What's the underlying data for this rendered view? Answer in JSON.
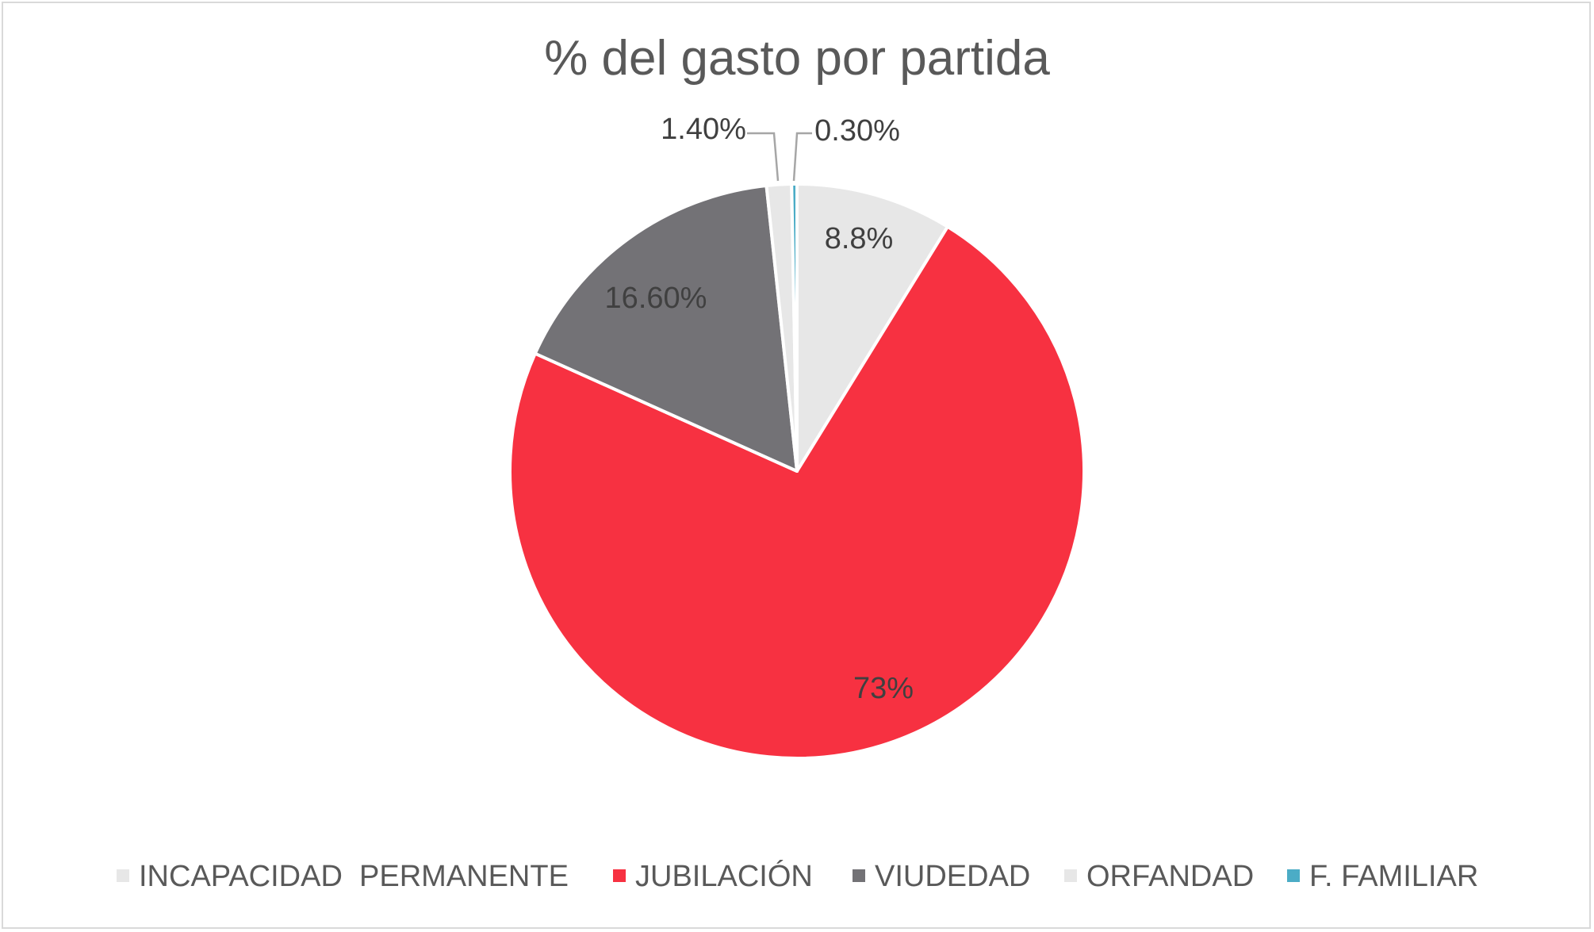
{
  "chart_data": {
    "type": "pie",
    "title": "% del gasto por partida",
    "categories": [
      "INCAPACIDAD  PERMANENTE",
      "JUBILACIÓN",
      "VIUDEDAD",
      "ORFANDAD",
      "F. FAMILIAR"
    ],
    "values": [
      8.8,
      73,
      16.6,
      1.4,
      0.3
    ],
    "data_labels": [
      "8.8%",
      "73%",
      "16.60%",
      "1.40%",
      "0.30%"
    ],
    "colors": [
      "#e7e7e7",
      "#f73141",
      "#737276",
      "#e7e7e7",
      "#4bacc6"
    ],
    "legend_position": "bottom",
    "start_angle_deg": 0,
    "direction": "clockwise"
  }
}
